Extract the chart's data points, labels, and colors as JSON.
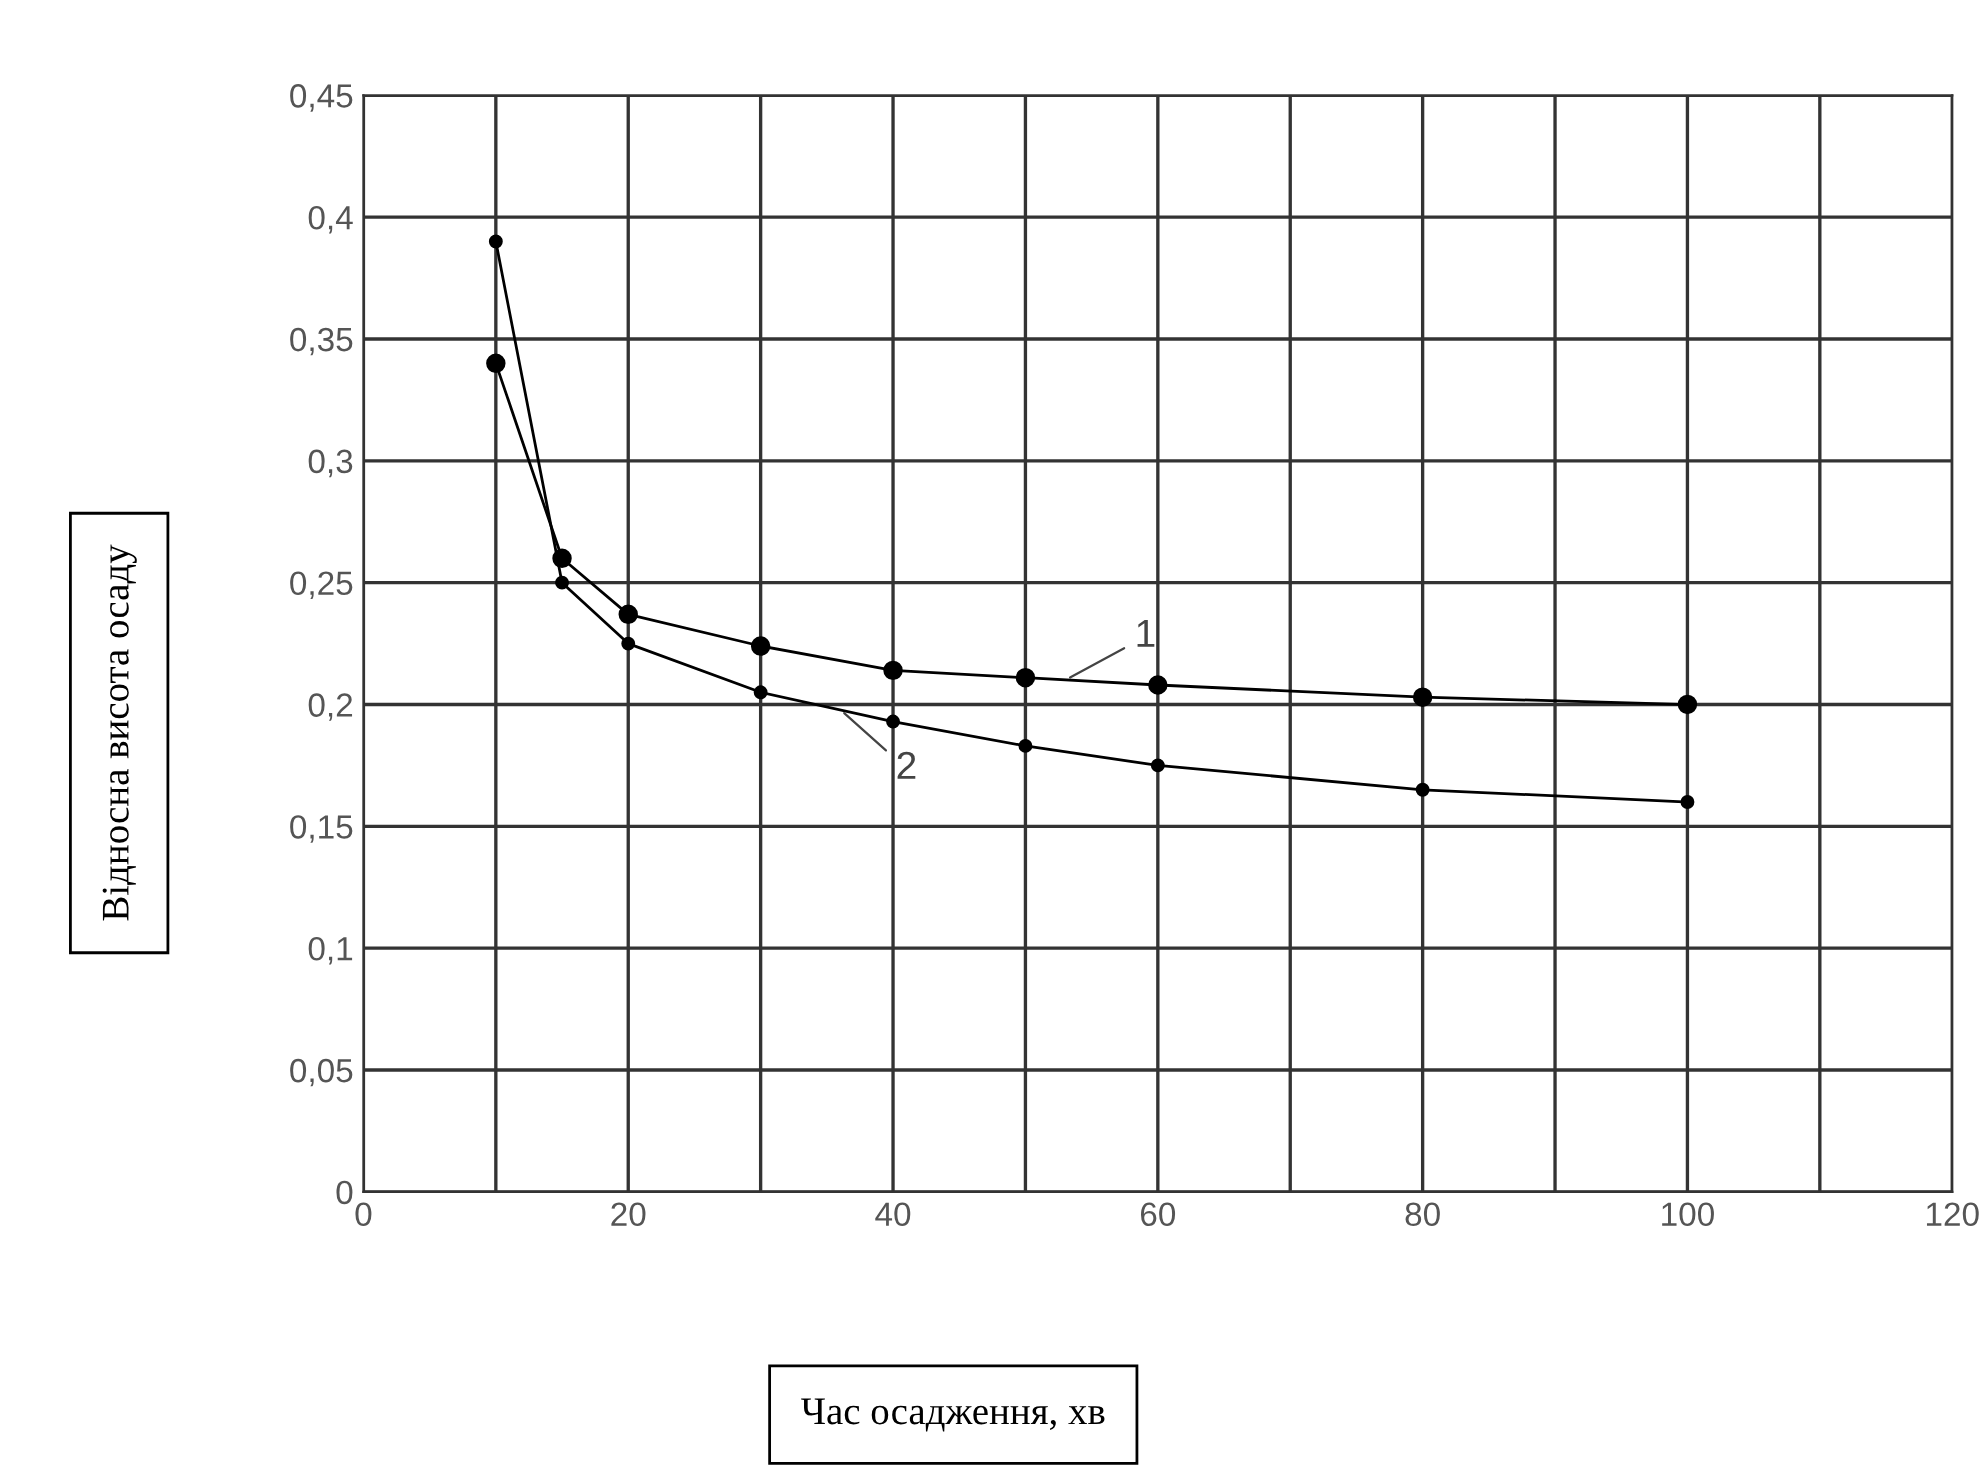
{
  "chart_data": {
    "type": "line",
    "xlabel": "Час осадження, хв",
    "ylabel": "Відносна висота осаду",
    "series": [
      {
        "color": "#000000",
        "marker": "circle",
        "x": [
          10,
          15,
          20,
          30,
          40,
          50,
          60,
          80,
          100
        ],
        "values": [
          0.34,
          0.26,
          0.237,
          0.224,
          0.214,
          0.211,
          0.208,
          0.203,
          0.2
        ]
      },
      {
        "color": "#000000",
        "marker": "circle",
        "x": [
          10,
          15,
          20,
          30,
          40,
          50,
          60,
          80,
          100
        ],
        "values": [
          0.39,
          0.25,
          0.225,
          0.205,
          0.193,
          0.183,
          0.175,
          0.165,
          0.16
        ]
      }
    ],
    "annotations": [
      {
        "text": "1",
        "x": 53,
        "y": 0.21
      },
      {
        "text": "2",
        "x": 36,
        "y": 0.198
      }
    ],
    "xlim": [
      0,
      120
    ],
    "ylim": [
      0,
      0.45
    ],
    "xticks": [
      0,
      {
        "value": 10,
        "label": null
      },
      20,
      {
        "value": 30,
        "label": null
      },
      40,
      {
        "value": 50,
        "label": null
      },
      60,
      {
        "value": 70,
        "label": null
      },
      80,
      {
        "value": 90,
        "label": null
      },
      100,
      {
        "value": 110,
        "label": null
      },
      120
    ],
    "yticks": [
      0,
      {
        "value": 0.05,
        "label": "0,05"
      },
      {
        "value": 0.1,
        "label": "0,1"
      },
      {
        "value": 0.15,
        "label": "0,15"
      },
      {
        "value": 0.2,
        "label": "0,2"
      },
      {
        "value": 0.25,
        "label": "0,25"
      },
      {
        "value": 0.3,
        "label": "0,3"
      },
      {
        "value": 0.35,
        "label": "0,35"
      },
      {
        "value": 0.4,
        "label": "0,4"
      },
      {
        "value": 0.45,
        "label": "0,45"
      }
    ],
    "grid": true,
    "legend": false
  }
}
